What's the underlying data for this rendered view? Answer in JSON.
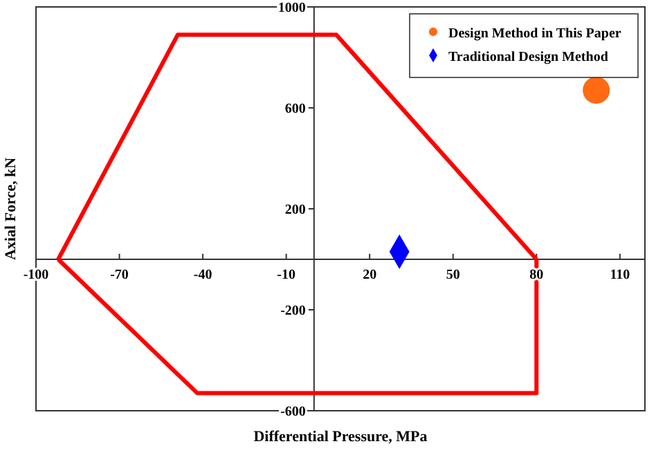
{
  "chart_data": {
    "type": "scatter",
    "xlabel": "Differential Pressure, MPa",
    "ylabel": "Axial Force, kN",
    "xlim": [
      -100,
      119
    ],
    "ylim": [
      -600,
      1000
    ],
    "xticks": [
      -100,
      -70,
      -40,
      -10,
      20,
      50,
      80,
      110
    ],
    "yticks": [
      1000,
      600,
      200,
      -200,
      -600
    ],
    "grid": false,
    "legend": "top right",
    "series": [
      {
        "type": "line",
        "color": "#ff0000",
        "marker": "none",
        "line_style": "solid",
        "x": [
          -92,
          -49,
          8,
          80
        ],
        "values": [
          0,
          890,
          890,
          0
        ]
      },
      {
        "type": "line",
        "color": "#ff0000",
        "marker": "none",
        "line_style": "solid",
        "x": [
          -92,
          -42,
          80,
          80
        ],
        "values": [
          0,
          -530,
          -530,
          0
        ]
      },
      {
        "name": "Design Method in This Paper",
        "color": "#ff6a13",
        "marker": "circle",
        "x": [
          101.5
        ],
        "values": [
          670
        ]
      },
      {
        "name": "Traditional Design Method",
        "color": "#0000ff",
        "marker": "diamond",
        "x": [
          30.7
        ],
        "values": [
          30
        ]
      }
    ]
  }
}
